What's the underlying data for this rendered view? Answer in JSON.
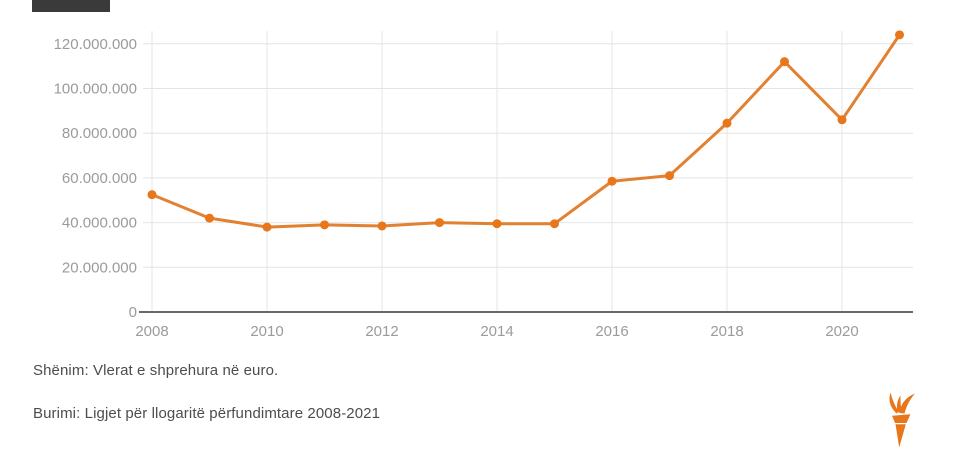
{
  "header": {
    "truncated_box_color": "#3a3a3a"
  },
  "colors": {
    "line": "#e0761f",
    "marker": "#e8761b",
    "grid": "#e4e4e4",
    "axis_line": "#696969",
    "tick_label": "#9b9b9b",
    "note_text": "#4d4d4d",
    "logo": "#e8761b"
  },
  "chart_data": {
    "type": "line",
    "title": "",
    "xlabel": "",
    "ylabel": "",
    "x": [
      2008,
      2009,
      2010,
      2011,
      2012,
      2013,
      2014,
      2015,
      2016,
      2017,
      2018,
      2019,
      2020,
      2021
    ],
    "values": [
      52500000,
      42000000,
      38000000,
      39000000,
      38500000,
      40000000,
      39500000,
      39500000,
      58500000,
      61000000,
      84500000,
      112000000,
      86000000,
      124000000
    ],
    "unit": "EUR",
    "xlim": [
      2008,
      2021.25
    ],
    "ylim": [
      0,
      130000000
    ],
    "grid": true,
    "legend": "none",
    "x_ticks": [
      2008,
      2010,
      2012,
      2014,
      2016,
      2018,
      2020
    ],
    "x_tick_labels": [
      "2008",
      "2010",
      "2012",
      "2014",
      "2016",
      "2018",
      "2020"
    ],
    "y_ticks": [
      0,
      20000000,
      40000000,
      60000000,
      80000000,
      100000000,
      120000000
    ],
    "y_tick_labels": [
      "0",
      "20.000.000",
      "40.000.000",
      "60.000.000",
      "80.000.000",
      "100.000.000",
      "120.000.000"
    ]
  },
  "notes": {
    "note": "Shënim: Vlerat e shprehura në euro.",
    "source": "Burimi: Ligjet për llogaritë përfundimtare 2008-2021"
  },
  "logo": {
    "name": "rferl-torch"
  }
}
